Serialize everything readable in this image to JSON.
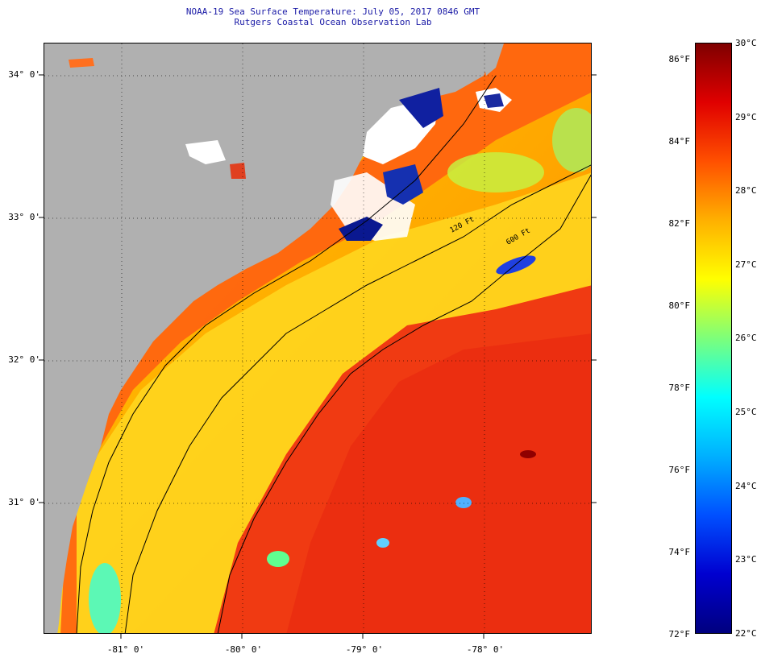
{
  "title": {
    "line1": "NOAA-19 Sea Surface Temperature:  July 05, 2017 0846 GMT",
    "line2": "Rutgers Coastal Ocean Observation Lab"
  },
  "axes": {
    "latitude_labels": [
      "34° 0'",
      "33° 0'",
      "32° 0'",
      "31° 0'"
    ],
    "longitude_labels": [
      "-81° 0'",
      "-80° 0'",
      "-79° 0'",
      "-78° 0'"
    ],
    "lat_range": [
      30.15,
      34.2
    ],
    "lon_range": [
      -81.6,
      -77.0
    ]
  },
  "contours": {
    "isobath_120": "120 Ft",
    "isobath_600": "600 Ft"
  },
  "legend": {
    "fahrenheit": [
      "86°F",
      "84°F",
      "82°F",
      "80°F",
      "78°F",
      "76°F",
      "74°F",
      "72°F"
    ],
    "celsius": [
      "30°C",
      "29°C",
      "28°C",
      "27°C",
      "26°C",
      "25°C",
      "24°C",
      "23°C",
      "22°C"
    ],
    "range_c": [
      22,
      30
    ],
    "colors": [
      "#00007f",
      "#0000d0",
      "#0050ff",
      "#00b0ff",
      "#00ffff",
      "#7dff7a",
      "#ffff00",
      "#ffb000",
      "#ff5000",
      "#e00000",
      "#7f0000"
    ]
  },
  "colors": {
    "land": "#b0b0b0",
    "cloud": "#ffffff",
    "cold_cloud_edge": "#00007f",
    "gulf_stream": "#ee3010",
    "shelf": "#ffc400",
    "nearshore": "#ff5a10"
  }
}
